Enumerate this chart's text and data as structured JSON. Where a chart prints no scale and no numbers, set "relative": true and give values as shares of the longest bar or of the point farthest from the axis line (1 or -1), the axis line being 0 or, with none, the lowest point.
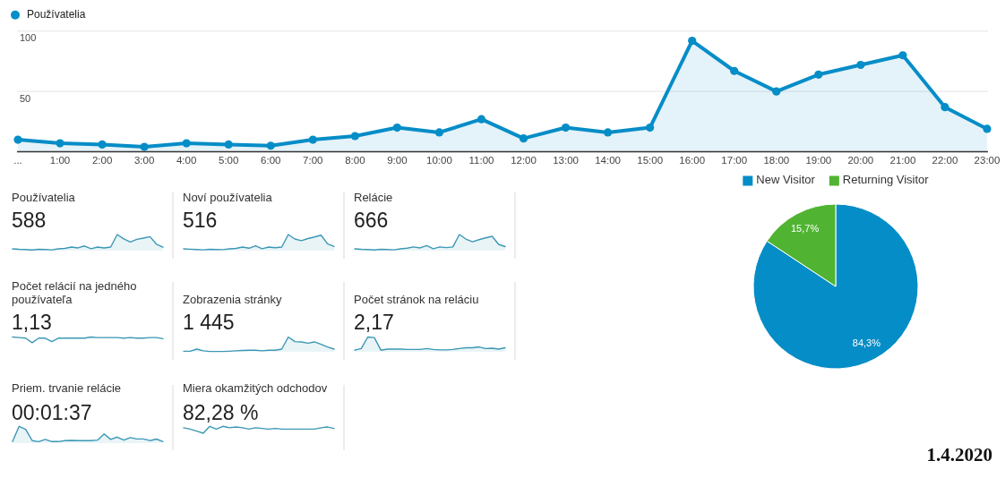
{
  "chart_data": [
    {
      "type": "area",
      "categories": [
        "...",
        "1:00",
        "2:00",
        "3:00",
        "4:00",
        "5:00",
        "6:00",
        "7:00",
        "8:00",
        "9:00",
        "10:00",
        "11:00",
        "12:00",
        "13:00",
        "14:00",
        "15:00",
        "16:00",
        "17:00",
        "18:00",
        "19:00",
        "20:00",
        "21:00",
        "22:00",
        "23:00"
      ],
      "series": [
        {
          "name": "Používatelia",
          "color": "#058dc7",
          "values": [
            10,
            7,
            6,
            4,
            7,
            6,
            5,
            10,
            13,
            20,
            16,
            27,
            11,
            20,
            16,
            20,
            92,
            67,
            50,
            64,
            72,
            80,
            37,
            19
          ]
        }
      ],
      "ylim": [
        0,
        100
      ],
      "yticks": [
        50,
        100
      ],
      "grid": "y",
      "legend": "top left",
      "marker": "circle"
    },
    {
      "type": "area",
      "relative": true,
      "title": "Používatelia",
      "subtitle": "588",
      "categories": [
        null,
        null,
        null,
        null,
        null,
        null,
        null,
        null,
        null,
        null,
        null,
        null,
        null,
        null,
        null,
        null,
        null,
        null,
        null,
        null,
        null,
        null,
        null,
        null
      ],
      "values": [
        0.11,
        0.08,
        0.07,
        0.04,
        0.08,
        0.07,
        0.05,
        0.11,
        0.14,
        0.22,
        0.17,
        0.29,
        0.12,
        0.22,
        0.17,
        0.22,
        1,
        0.73,
        0.54,
        0.7,
        0.78,
        0.87,
        0.4,
        0.21
      ],
      "color": "#3b98b5"
    },
    {
      "type": "area",
      "relative": true,
      "title": "Noví používatelia",
      "subtitle": "516",
      "categories": [
        null,
        null,
        null,
        null,
        null,
        null,
        null,
        null,
        null,
        null,
        null,
        null,
        null,
        null,
        null,
        null,
        null,
        null,
        null,
        null,
        null,
        null,
        null,
        null
      ],
      "values": [
        0.11,
        0.09,
        0.07,
        0.05,
        0.08,
        0.07,
        0.06,
        0.11,
        0.14,
        0.22,
        0.15,
        0.3,
        0.12,
        0.22,
        0.18,
        0.22,
        1,
        0.72,
        0.62,
        0.75,
        0.85,
        0.96,
        0.42,
        0.26
      ],
      "color": "#3b98b5"
    },
    {
      "type": "area",
      "relative": true,
      "title": "Relácie",
      "subtitle": "666",
      "categories": [
        null,
        null,
        null,
        null,
        null,
        null,
        null,
        null,
        null,
        null,
        null,
        null,
        null,
        null,
        null,
        null,
        null,
        null,
        null,
        null,
        null,
        null,
        null,
        null
      ],
      "values": [
        0.11,
        0.08,
        0.07,
        0.04,
        0.08,
        0.07,
        0.05,
        0.11,
        0.15,
        0.23,
        0.17,
        0.31,
        0.12,
        0.23,
        0.19,
        0.23,
        1,
        0.72,
        0.55,
        0.68,
        0.79,
        0.89,
        0.39,
        0.25
      ],
      "color": "#3b98b5"
    },
    {
      "type": "line",
      "relative": true,
      "title": "Počet relácií na jedného používateľa",
      "subtitle": "1,13",
      "categories": [
        null,
        null,
        null,
        null,
        null,
        null,
        null,
        null,
        null,
        null,
        null,
        null,
        null,
        null,
        null,
        null,
        null,
        null,
        null,
        null,
        null,
        null,
        null,
        null
      ],
      "values": [
        1,
        0.9,
        0.8,
        0,
        0.8,
        0.8,
        0.2,
        0.8,
        0.8,
        0.8,
        0.8,
        0.8,
        1,
        0.9,
        0.9,
        0.9,
        0.9,
        0.8,
        0.9,
        0.8,
        0.8,
        0.9,
        0.9,
        0.7
      ],
      "color": "#3b98b5"
    },
    {
      "type": "area",
      "relative": true,
      "title": "Zobrazenia stránky",
      "subtitle": "1 445",
      "categories": [
        null,
        null,
        null,
        null,
        null,
        null,
        null,
        null,
        null,
        null,
        null,
        null,
        null,
        null,
        null,
        null,
        null,
        null,
        null,
        null,
        null,
        null,
        null,
        null
      ],
      "values": [
        0.04,
        0.04,
        0.18,
        0.07,
        0.02,
        0.02,
        0.02,
        0.04,
        0.07,
        0.09,
        0.11,
        0.11,
        0.07,
        0.11,
        0.11,
        0.18,
        1,
        0.69,
        0.67,
        0.58,
        0.67,
        0.51,
        0.33,
        0.18
      ],
      "color": "#3b98b5"
    },
    {
      "type": "area",
      "relative": true,
      "title": "Počet stránok na reláciu",
      "subtitle": "2,17",
      "categories": [
        null,
        null,
        null,
        null,
        null,
        null,
        null,
        null,
        null,
        null,
        null,
        null,
        null,
        null,
        null,
        null,
        null,
        null,
        null,
        null,
        null,
        null,
        null,
        null
      ],
      "values": [
        0.11,
        0.22,
        1,
        0.96,
        0.11,
        0.18,
        0.18,
        0.18,
        0.16,
        0.16,
        0.16,
        0.22,
        0.16,
        0.13,
        0.13,
        0.16,
        0.22,
        0.27,
        0.27,
        0.33,
        0.22,
        0.24,
        0.18,
        0.27
      ],
      "color": "#3b98b5"
    },
    {
      "type": "area",
      "relative": true,
      "title": "Priem. trvanie relácie",
      "subtitle": "00:01:37",
      "categories": [
        null,
        null,
        null,
        null,
        null,
        null,
        null,
        null,
        null,
        null,
        null,
        null,
        null,
        null,
        null,
        null,
        null,
        null,
        null,
        null,
        null,
        null,
        null,
        null
      ],
      "values": [
        0.09,
        1,
        0.82,
        0.15,
        0.09,
        0.22,
        0.09,
        0.09,
        0.15,
        0.16,
        0.15,
        0.15,
        0.15,
        0.18,
        0.55,
        0.22,
        0.36,
        0.18,
        0.33,
        0.25,
        0.25,
        0.15,
        0.24,
        0.09
      ],
      "color": "#3b98b5"
    },
    {
      "type": "line",
      "relative": true,
      "title": "Miera okamžitých odchodov",
      "subtitle": "82,28 %",
      "categories": [
        null,
        null,
        null,
        null,
        null,
        null,
        null,
        null,
        null,
        null,
        null,
        null,
        null,
        null,
        null,
        null,
        null,
        null,
        null,
        null,
        null,
        null,
        null,
        null
      ],
      "values": [
        0.8,
        0.6,
        0.3,
        0,
        1,
        0.6,
        1,
        0.8,
        0.9,
        0.8,
        0.6,
        0.8,
        0.7,
        0.6,
        0.7,
        0.6,
        0.6,
        0.6,
        0.6,
        0.6,
        0.6,
        0.8,
        0.9,
        0.7
      ],
      "color": "#3b98b5"
    },
    {
      "type": "pie",
      "categories": [
        "New Visitor",
        "Returning Visitor"
      ],
      "values": [
        84.3,
        15.7
      ],
      "colors": [
        "#058dc7",
        "#50b432"
      ],
      "value_labels": [
        "84,3%",
        "15,7%"
      ],
      "legend": "top",
      "annotations": [
        "1.4.2020"
      ]
    }
  ]
}
